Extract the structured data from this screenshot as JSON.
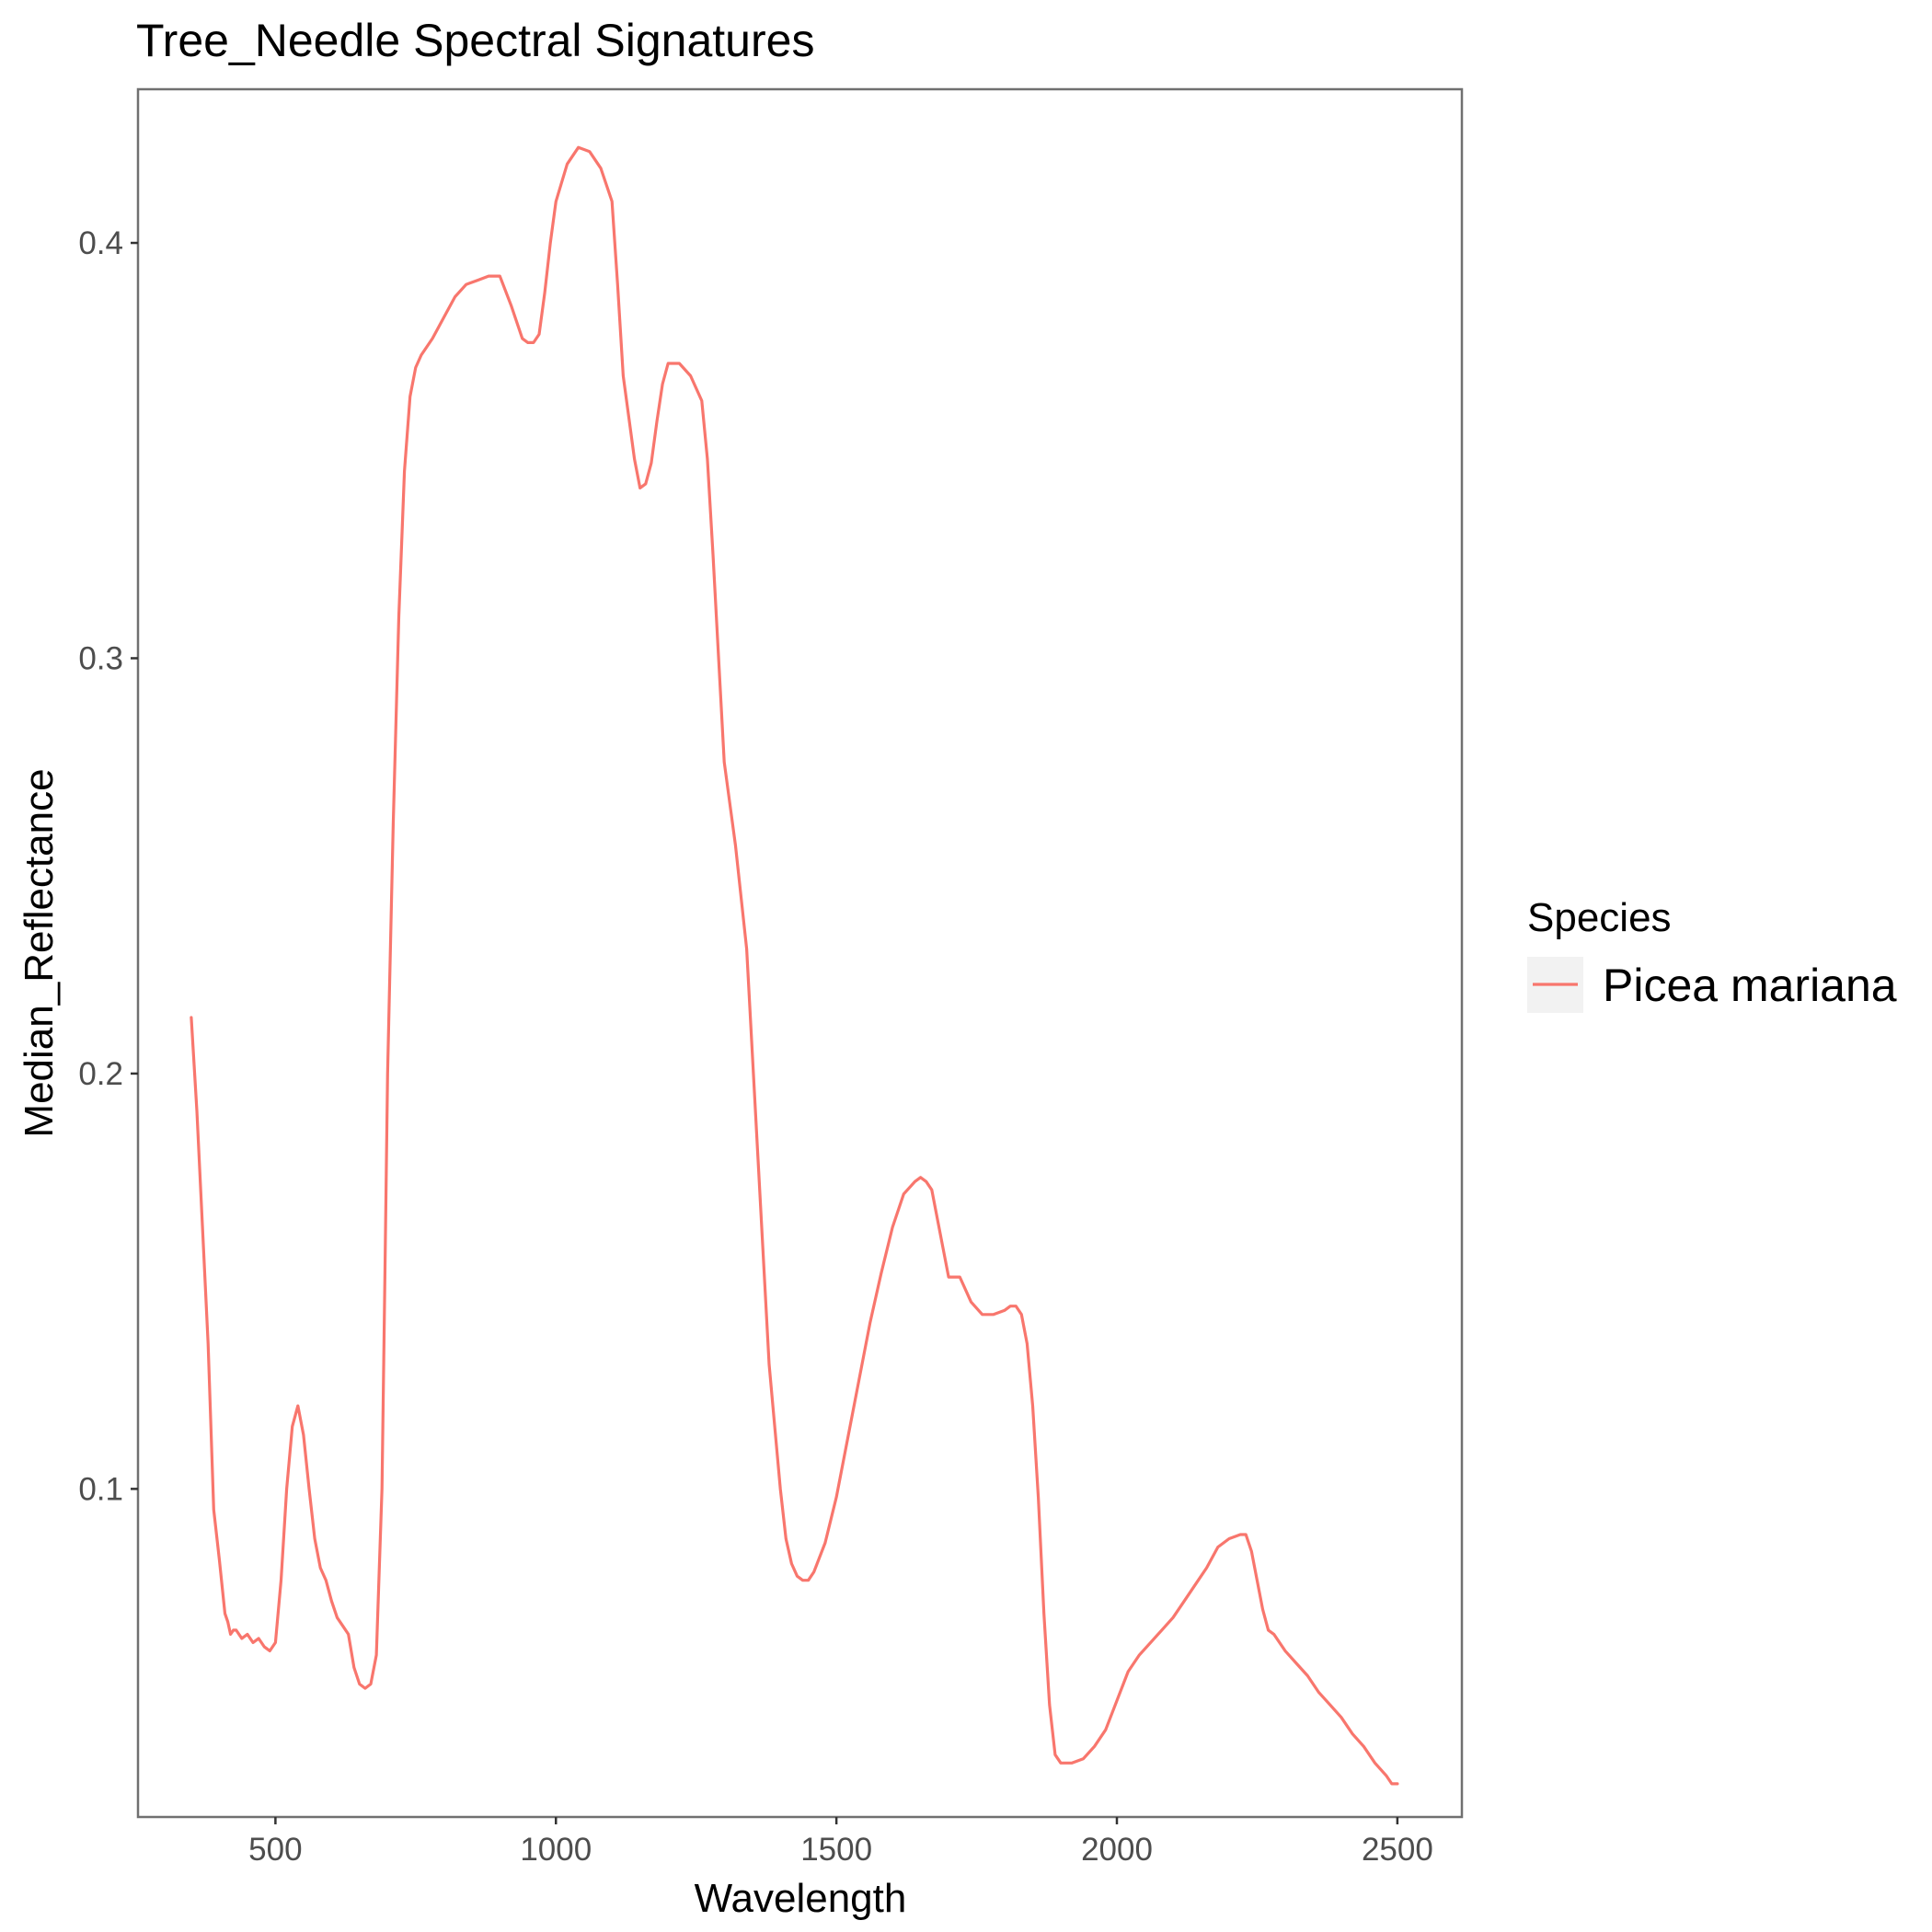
{
  "chart_data": {
    "type": "line",
    "title": "Tree_Needle Spectral Signatures",
    "xlabel": "Wavelength",
    "ylabel": "Median_Reflectance",
    "xlim": [
      255,
      2615
    ],
    "ylim": [
      0.021,
      0.437
    ],
    "x_ticks": [
      500,
      1000,
      1500,
      2000,
      2500
    ],
    "y_ticks": [
      0.1,
      0.2,
      0.3,
      0.4
    ],
    "grid": false,
    "legend": {
      "title": "Species",
      "position": "right"
    },
    "series": [
      {
        "name": "Picea mariana",
        "color": "#F8766D",
        "x": [
          350,
          360,
          370,
          380,
          390,
          400,
          410,
          415,
          420,
          425,
          430,
          440,
          450,
          460,
          470,
          480,
          490,
          500,
          510,
          520,
          530,
          540,
          550,
          560,
          570,
          580,
          590,
          600,
          610,
          620,
          630,
          640,
          650,
          660,
          670,
          680,
          690,
          695,
          700,
          710,
          720,
          730,
          740,
          750,
          760,
          770,
          780,
          800,
          820,
          840,
          860,
          880,
          900,
          920,
          940,
          950,
          960,
          970,
          980,
          990,
          1000,
          1020,
          1040,
          1060,
          1080,
          1100,
          1110,
          1120,
          1130,
          1140,
          1150,
          1160,
          1170,
          1180,
          1190,
          1200,
          1220,
          1240,
          1260,
          1270,
          1280,
          1290,
          1300,
          1320,
          1340,
          1360,
          1380,
          1400,
          1410,
          1420,
          1430,
          1440,
          1450,
          1460,
          1480,
          1500,
          1520,
          1540,
          1560,
          1580,
          1600,
          1620,
          1640,
          1650,
          1660,
          1670,
          1680,
          1690,
          1700,
          1720,
          1740,
          1760,
          1780,
          1800,
          1810,
          1820,
          1830,
          1840,
          1850,
          1860,
          1870,
          1880,
          1890,
          1900,
          1910,
          1920,
          1940,
          1960,
          1980,
          2000,
          2020,
          2040,
          2060,
          2080,
          2100,
          2120,
          2140,
          2160,
          2180,
          2200,
          2220,
          2230,
          2240,
          2250,
          2260,
          2270,
          2280,
          2300,
          2320,
          2340,
          2360,
          2380,
          2400,
          2420,
          2440,
          2460,
          2480,
          2490,
          2500
        ],
        "values": [
          0.2135,
          0.191,
          0.163,
          0.135,
          0.095,
          0.083,
          0.07,
          0.068,
          0.065,
          0.066,
          0.066,
          0.064,
          0.065,
          0.063,
          0.064,
          0.062,
          0.061,
          0.063,
          0.078,
          0.1,
          0.115,
          0.12,
          0.113,
          0.1,
          0.088,
          0.081,
          0.078,
          0.073,
          0.069,
          0.067,
          0.065,
          0.057,
          0.053,
          0.052,
          0.053,
          0.06,
          0.1,
          0.15,
          0.2,
          0.26,
          0.31,
          0.345,
          0.363,
          0.37,
          0.373,
          0.375,
          0.377,
          0.382,
          0.387,
          0.39,
          0.391,
          0.392,
          0.392,
          0.385,
          0.377,
          0.376,
          0.376,
          0.378,
          0.388,
          0.4,
          0.41,
          0.419,
          0.423,
          0.422,
          0.418,
          0.41,
          0.39,
          0.368,
          0.358,
          0.348,
          0.341,
          0.342,
          0.347,
          0.357,
          0.366,
          0.371,
          0.371,
          0.368,
          0.362,
          0.348,
          0.325,
          0.3,
          0.275,
          0.255,
          0.23,
          0.18,
          0.13,
          0.1,
          0.088,
          0.082,
          0.079,
          0.078,
          0.078,
          0.08,
          0.087,
          0.098,
          0.112,
          0.126,
          0.14,
          0.152,
          0.163,
          0.171,
          0.174,
          0.175,
          0.174,
          0.172,
          0.165,
          0.158,
          0.151,
          0.151,
          0.145,
          0.142,
          0.142,
          0.143,
          0.144,
          0.144,
          0.142,
          0.135,
          0.12,
          0.098,
          0.07,
          0.048,
          0.036,
          0.034,
          0.034,
          0.034,
          0.035,
          0.038,
          0.042,
          0.049,
          0.056,
          0.06,
          0.063,
          0.066,
          0.069,
          0.073,
          0.077,
          0.081,
          0.086,
          0.088,
          0.089,
          0.089,
          0.085,
          0.078,
          0.071,
          0.066,
          0.065,
          0.061,
          0.058,
          0.055,
          0.051,
          0.048,
          0.045,
          0.041,
          0.038,
          0.034,
          0.031,
          0.029,
          0.029
        ]
      }
    ]
  }
}
